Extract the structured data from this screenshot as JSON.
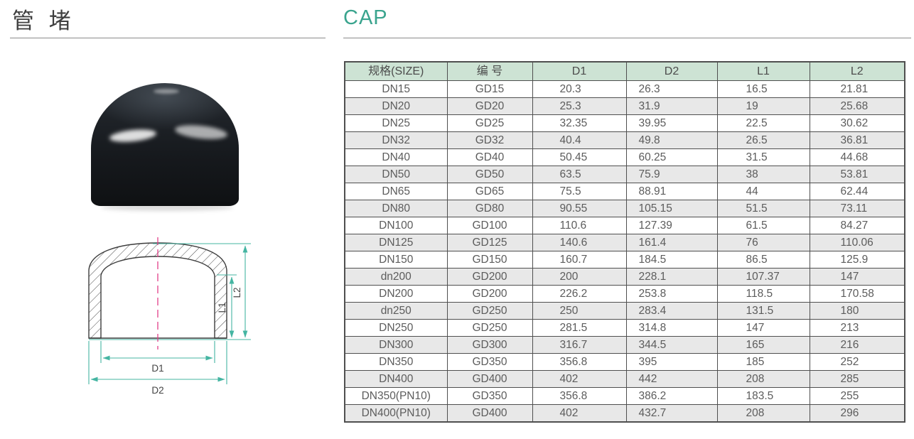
{
  "page": {
    "title_cn": "管 堵",
    "title_en": "CAP"
  },
  "photo": {
    "description": "black glossy pvc pipe cap product photo"
  },
  "diagram": {
    "labels": {
      "d1": "D1",
      "d2": "D2",
      "l1": "L1",
      "l2": "L2"
    }
  },
  "table": {
    "headers": [
      "规格(SIZE)",
      "编 号",
      "D1",
      "D2",
      "L1",
      "L2"
    ],
    "rows": [
      [
        "DN15",
        "GD15",
        "20.3",
        "26.3",
        "16.5",
        "21.81"
      ],
      [
        "DN20",
        "GD20",
        "25.3",
        "31.9",
        "19",
        "25.68"
      ],
      [
        "DN25",
        "GD25",
        "32.35",
        "39.95",
        "22.5",
        "30.62"
      ],
      [
        "DN32",
        "GD32",
        "40.4",
        "49.8",
        "26.5",
        "36.81"
      ],
      [
        "DN40",
        "GD40",
        "50.45",
        "60.25",
        "31.5",
        "44.68"
      ],
      [
        "DN50",
        "GD50",
        "63.5",
        "75.9",
        "38",
        "53.81"
      ],
      [
        "DN65",
        "GD65",
        "75.5",
        "88.91",
        "44",
        "62.44"
      ],
      [
        "DN80",
        "GD80",
        "90.55",
        "105.15",
        "51.5",
        "73.11"
      ],
      [
        "DN100",
        "GD100",
        "110.6",
        "127.39",
        "61.5",
        "84.27"
      ],
      [
        "DN125",
        "GD125",
        "140.6",
        "161.4",
        "76",
        "110.06"
      ],
      [
        "DN150",
        "GD150",
        "160.7",
        "184.5",
        "86.5",
        "125.9"
      ],
      [
        "dn200",
        "GD200",
        "200",
        "228.1",
        "107.37",
        "147"
      ],
      [
        "DN200",
        "GD200",
        "226.2",
        "253.8",
        "118.5",
        "170.58"
      ],
      [
        "dn250",
        "GD250",
        "250",
        "283.4",
        "131.5",
        "180"
      ],
      [
        "DN250",
        "GD250",
        "281.5",
        "314.8",
        "147",
        "213"
      ],
      [
        "DN300",
        "GD300",
        "316.7",
        "344.5",
        "165",
        "216"
      ],
      [
        "DN350",
        "GD350",
        "356.8",
        "395",
        "185",
        "252"
      ],
      [
        "DN400",
        "GD400",
        "402",
        "442",
        "208",
        "285"
      ],
      [
        "DN350(PN10)",
        "GD350",
        "356.8",
        "386.2",
        "183.5",
        "255"
      ],
      [
        "DN400(PN10)",
        "GD400",
        "402",
        "432.7",
        "208",
        "296"
      ]
    ]
  },
  "colors": {
    "accent_teal": "#3aa48e",
    "dimension_teal": "#44b5a2",
    "centerline_pink": "#e23f88",
    "table_header_bg": "#cde3d4",
    "table_row_alt_bg": "#e8e8e8",
    "table_border": "#4f4f4f"
  }
}
